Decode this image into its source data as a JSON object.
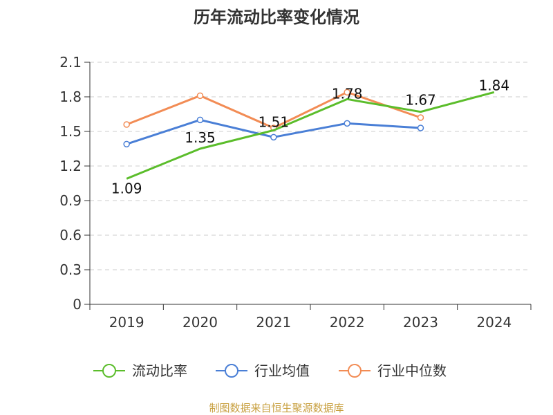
{
  "chart_data": {
    "type": "line",
    "title": "历年流动比率变化情况",
    "categories": [
      "2019",
      "2020",
      "2021",
      "2022",
      "2023",
      "2024"
    ],
    "ylim": [
      0,
      2.1
    ],
    "yticks": [
      "0",
      "0.3",
      "0.6",
      "0.9",
      "1.2",
      "1.5",
      "1.8",
      "2.1"
    ],
    "grid": true,
    "legend_position": "bottom",
    "series": [
      {
        "name": "流动比率",
        "color": "#5bbd2b",
        "values": [
          1.09,
          1.35,
          1.51,
          1.78,
          1.67,
          1.84
        ],
        "labels": [
          "1.09",
          "1.35",
          "1.51",
          "1.78",
          "1.67",
          "1.84"
        ]
      },
      {
        "name": "行业均值",
        "color": "#4a7fd6",
        "values": [
          1.39,
          1.6,
          1.45,
          1.57,
          1.53,
          null
        ]
      },
      {
        "name": "行业中位数",
        "color": "#f28c55",
        "values": [
          1.56,
          1.81,
          1.53,
          1.84,
          1.62,
          null
        ]
      }
    ]
  },
  "source": {
    "text": "制图数据来自恒生聚源数据库",
    "color": "#c8a040"
  }
}
